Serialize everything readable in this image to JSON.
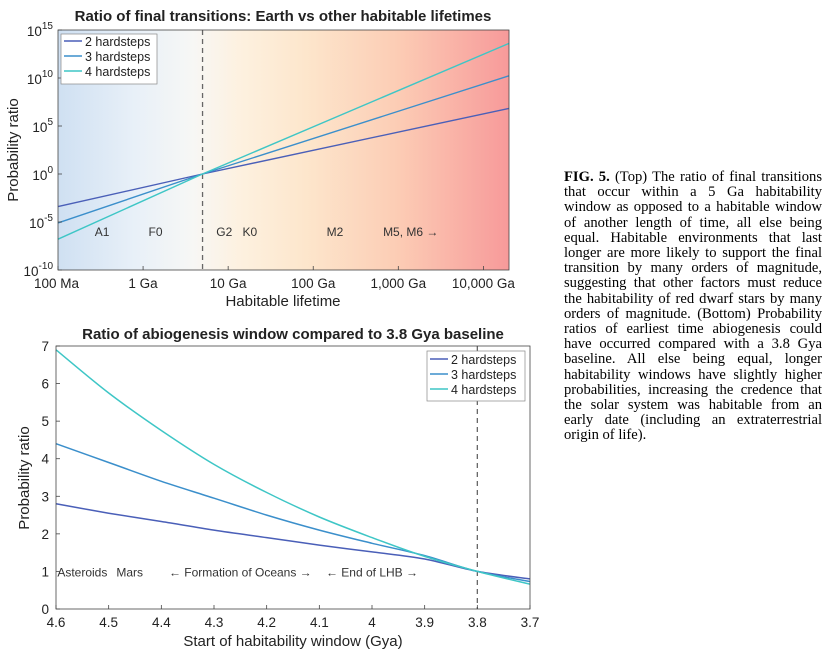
{
  "chart_data": [
    {
      "type": "line",
      "title": "Ratio of final transitions: Earth vs other habitable lifetimes",
      "xlabel": "Habitable lifetime",
      "ylabel": "Probability ratio",
      "xscale": "log",
      "yscale": "log",
      "xlim_years": [
        100000000,
        20000000000000
      ],
      "ylim": [
        1e-10,
        1000000000000000.0
      ],
      "x_ticks": [
        {
          "value": 100000000,
          "label": "100 Ma"
        },
        {
          "value": 1000000000,
          "label": "1 Ga"
        },
        {
          "value": 10000000000,
          "label": "10 Ga"
        },
        {
          "value": 100000000000,
          "label": "100 Ga"
        },
        {
          "value": 1000000000000,
          "label": "1,000 Ga"
        },
        {
          "value": 10000000000000,
          "label": "10,000 Ga"
        }
      ],
      "y_ticks": [
        {
          "exp": -10,
          "base": "10",
          "sup": "-10"
        },
        {
          "exp": -5,
          "base": "10",
          "sup": "-5"
        },
        {
          "exp": 0,
          "base": "10",
          "sup": "0"
        },
        {
          "exp": 5,
          "base": "10",
          "sup": "5"
        },
        {
          "exp": 10,
          "base": "10",
          "sup": "10"
        },
        {
          "exp": 15,
          "base": "10",
          "sup": "15"
        }
      ],
      "reference_line_years": 5000000000,
      "annotations": [
        {
          "label": "A1",
          "x_years": 330000000
        },
        {
          "label": "F0",
          "x_years": 1400000000
        },
        {
          "label": "G2",
          "x_years": 9000000000
        },
        {
          "label": "K0",
          "x_years": 18000000000
        },
        {
          "label": "M2",
          "x_years": 180000000000
        },
        {
          "label": "M5, M6 →",
          "x_years": 1400000000000
        }
      ],
      "legend_position": "top-left",
      "series": [
        {
          "name": "2 hardsteps",
          "color": "#4a5fb8",
          "x": [
            100000000,
            5000000000,
            20000000000000
          ],
          "y": [
            0.0004,
            1,
            6800000
          ]
        },
        {
          "name": "3 hardsteps",
          "color": "#3b8fcb",
          "x": [
            100000000,
            5000000000,
            20000000000000
          ],
          "y": [
            8e-06,
            1,
            17000000000
          ]
        },
        {
          "name": "4 hardsteps",
          "color": "#3ec6c6",
          "x": [
            100000000,
            5000000000,
            20000000000000
          ],
          "y": [
            1.6e-07,
            1,
            40000000000000
          ]
        }
      ]
    },
    {
      "type": "line",
      "title": "Ratio of abiogenesis window compared to 3.8 Gya baseline",
      "xlabel": "Start of habitability window (Gya)",
      "ylabel": "Probability ratio",
      "xlim": [
        4.6,
        3.7
      ],
      "ylim": [
        0,
        7
      ],
      "x_ticks": [
        "4.6",
        "4.5",
        "4.4",
        "4.3",
        "4.2",
        "4.1",
        "4",
        "3.9",
        "3.8",
        "3.7"
      ],
      "y_ticks": [
        "0",
        "1",
        "2",
        "3",
        "4",
        "5",
        "6",
        "7"
      ],
      "reference_line_x": 3.8,
      "annotations": [
        {
          "label": "Asteroids",
          "x": 4.55,
          "y": 1
        },
        {
          "label": "Mars",
          "x": 4.46,
          "y": 1
        },
        {
          "label": "← Formation of Oceans →",
          "x": 4.25,
          "y": 1
        },
        {
          "label": "← End of LHB →",
          "x": 4.0,
          "y": 1
        }
      ],
      "legend_position": "top-right",
      "series": [
        {
          "name": "2 hardsteps",
          "color": "#4a5fb8",
          "x": [
            4.6,
            4.5,
            4.4,
            4.3,
            4.2,
            4.1,
            4.0,
            3.9,
            3.8,
            3.7
          ],
          "y": [
            2.8,
            2.55,
            2.33,
            2.1,
            1.9,
            1.7,
            1.52,
            1.33,
            1.0,
            0.8
          ]
        },
        {
          "name": "3 hardsteps",
          "color": "#3b8fcb",
          "x": [
            4.6,
            4.5,
            4.4,
            4.3,
            4.2,
            4.1,
            4.0,
            3.9,
            3.8,
            3.7
          ],
          "y": [
            4.4,
            3.9,
            3.4,
            2.95,
            2.5,
            2.1,
            1.75,
            1.42,
            1.0,
            0.73
          ]
        },
        {
          "name": "4 hardsteps",
          "color": "#3ec6c6",
          "x": [
            4.6,
            4.5,
            4.4,
            4.3,
            4.2,
            4.1,
            4.0,
            3.9,
            3.8,
            3.7
          ],
          "y": [
            6.9,
            5.75,
            4.75,
            3.85,
            3.1,
            2.45,
            1.9,
            1.4,
            1.0,
            0.66
          ]
        }
      ]
    }
  ],
  "caption": {
    "label": "FIG. 5.",
    "text": "(Top) The ratio of final transitions that occur within a 5 Ga habitability window as opposed to a habitable window of another length of time, all else being equal. Habitable environments that last longer are more likely to support the final transition by many orders of magnitude, suggesting that other factors must reduce the habitability of red dwarf stars by many orders of magnitude. (Bottom) Probability ratios of earliest time abiogenesis could have occurred compared with a 3.8 Gya baseline. All else being equal, longer habitability windows have slightly higher probabilities, increasing the credence that the solar system was habitable from an early date (including an extraterrestrial origin of life)."
  }
}
